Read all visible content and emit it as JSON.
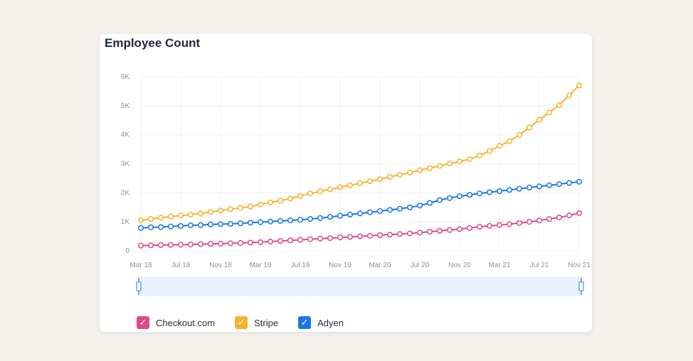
{
  "card": {
    "title": "Employee Count"
  },
  "legend": [
    {
      "label": "Checkout.com",
      "color": "#dc4a8a",
      "check_icon": "checkmark-icon"
    },
    {
      "label": "Stripe",
      "color": "#f7b22e",
      "check_icon": "checkmark-icon"
    },
    {
      "label": "Adyen",
      "color": "#1877e6",
      "check_icon": "checkmark-icon"
    }
  ],
  "colors": {
    "Checkout.com": "#dc4a8a",
    "Stripe": "#f7b22e",
    "Adyen": "#1877e6",
    "zoom_band": "#e8f2fd",
    "zoom_handle": "#60a8ee"
  },
  "chart_data": {
    "type": "line",
    "title": "Employee Count",
    "xlabel": "",
    "ylabel": "",
    "ylim": [
      0,
      6000
    ],
    "yticks": [
      0,
      1000,
      2000,
      3000,
      4000,
      5000,
      6000
    ],
    "ytick_labels": [
      "0",
      "1K",
      "2K",
      "3K",
      "4K",
      "5K",
      "6K"
    ],
    "xticks": [
      "Mar 18",
      "Jul 18",
      "Nov 18",
      "Mar 19",
      "Jul 19",
      "Nov 19",
      "Mar 20",
      "Jul 20",
      "Nov 20",
      "Mar 21",
      "Jul 21",
      "Nov 21"
    ],
    "x": [
      "Mar 18",
      "Apr 18",
      "May 18",
      "Jun 18",
      "Jul 18",
      "Aug 18",
      "Sep 18",
      "Oct 18",
      "Nov 18",
      "Dec 18",
      "Jan 19",
      "Feb 19",
      "Mar 19",
      "Apr 19",
      "May 19",
      "Jun 19",
      "Jul 19",
      "Aug 19",
      "Sep 19",
      "Oct 19",
      "Nov 19",
      "Dec 19",
      "Jan 20",
      "Feb 20",
      "Mar 20",
      "Apr 20",
      "May 20",
      "Jun 20",
      "Jul 20",
      "Aug 20",
      "Sep 20",
      "Oct 20",
      "Nov 20",
      "Dec 20",
      "Jan 21",
      "Feb 21",
      "Mar 21",
      "Apr 21",
      "May 21",
      "Jun 21",
      "Jul 21",
      "Aug 21",
      "Sep 21",
      "Oct 21",
      "Nov 21"
    ],
    "grid": true,
    "legend_position": "bottom",
    "series": [
      {
        "name": "Checkout.com",
        "values": [
          180,
          190,
          200,
          205,
          210,
          220,
          230,
          240,
          250,
          260,
          270,
          285,
          300,
          320,
          340,
          360,
          380,
          400,
          420,
          440,
          460,
          480,
          500,
          520,
          540,
          560,
          580,
          600,
          630,
          660,
          690,
          720,
          750,
          790,
          830,
          860,
          890,
          920,
          960,
          1000,
          1050,
          1100,
          1150,
          1220,
          1300
        ]
      },
      {
        "name": "Stripe",
        "values": [
          1050,
          1100,
          1140,
          1180,
          1220,
          1250,
          1290,
          1340,
          1390,
          1440,
          1480,
          1530,
          1600,
          1670,
          1730,
          1800,
          1890,
          1980,
          2050,
          2120,
          2190,
          2260,
          2330,
          2400,
          2470,
          2550,
          2620,
          2700,
          2780,
          2850,
          2930,
          3010,
          3080,
          3160,
          3290,
          3440,
          3620,
          3780,
          4000,
          4250,
          4520,
          4770,
          5020,
          5360,
          5700
        ]
      },
      {
        "name": "Adyen",
        "values": [
          790,
          810,
          820,
          840,
          860,
          880,
          890,
          910,
          920,
          930,
          950,
          970,
          990,
          1010,
          1030,
          1050,
          1070,
          1100,
          1130,
          1170,
          1210,
          1250,
          1290,
          1330,
          1370,
          1410,
          1450,
          1500,
          1560,
          1650,
          1750,
          1820,
          1880,
          1930,
          1980,
          2020,
          2060,
          2100,
          2140,
          2180,
          2220,
          2260,
          2300,
          2340,
          2380
        ]
      }
    ]
  }
}
